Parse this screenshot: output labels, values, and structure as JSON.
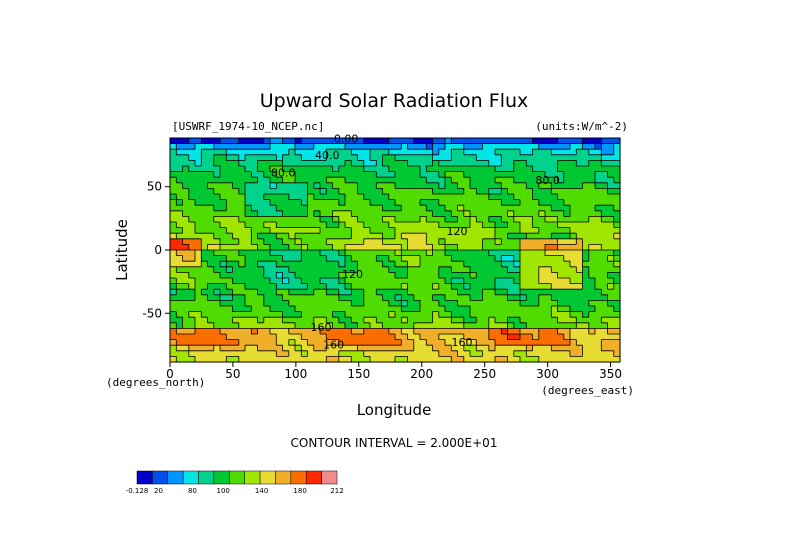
{
  "chart_data": {
    "type": "heatmap",
    "title": "Upward Solar Radiation Flux",
    "file_label": "[USWRF_1974-10_NCEP.nc]",
    "units_label": "(units:W/m^-2)",
    "xlabel": "Longitude",
    "ylabel": "Latitude",
    "x_unit_label": "(degrees_east)",
    "y_unit_label": "(degrees_north)",
    "xlim": [
      0,
      357.5
    ],
    "ylim": [
      -88.5,
      88.5
    ],
    "x_ticks": [
      0,
      50,
      100,
      150,
      200,
      250,
      300,
      350
    ],
    "y_ticks": [
      50,
      0,
      -50
    ],
    "contour_interval_text": "CONTOUR INTERVAL = 2.000E+01",
    "contour_labels": [
      {
        "text": "0.00",
        "x": 140,
        "y": 85
      },
      {
        "text": "40.0",
        "x": 125,
        "y": 72
      },
      {
        "text": "80.0",
        "x": 90,
        "y": 58
      },
      {
        "text": "80.0",
        "x": 300,
        "y": 52
      },
      {
        "text": "120",
        "x": 228,
        "y": 12
      },
      {
        "text": "120",
        "x": 145,
        "y": -22
      },
      {
        "text": "160",
        "x": 120,
        "y": -64
      },
      {
        "text": "160",
        "x": 130,
        "y": -78
      },
      {
        "text": "160",
        "x": 232,
        "y": -76
      }
    ],
    "colorbar": {
      "levels": [
        "-0.128",
        "20",
        "80",
        "100",
        "140",
        "180",
        "212"
      ],
      "colors": [
        "#0000c8",
        "#0050f0",
        "#0096ff",
        "#00e6e6",
        "#00d28c",
        "#00c832",
        "#50dc00",
        "#a0e600",
        "#e6dc32",
        "#f0af28",
        "#fa6e00",
        "#ff2800",
        "#f08c8c"
      ]
    }
  }
}
